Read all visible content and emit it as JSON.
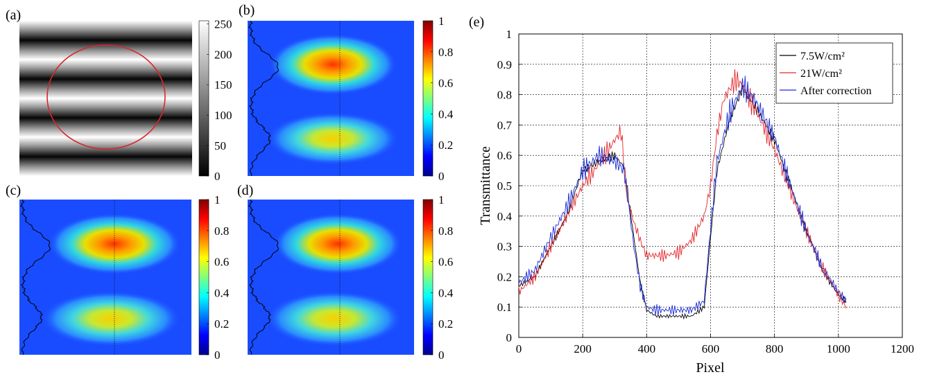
{
  "panels": [
    {
      "id": "a",
      "label": "(a)"
    },
    {
      "id": "b",
      "label": "(b)"
    },
    {
      "id": "c",
      "label": "(c)"
    },
    {
      "id": "d",
      "label": "(d)"
    },
    {
      "id": "e",
      "label": "(e)"
    }
  ],
  "colorbars": {
    "gray": {
      "ticks": [
        "0",
        "50",
        "100",
        "150",
        "200",
        "250"
      ],
      "values": [
        0,
        50,
        100,
        150,
        200,
        250
      ],
      "range": [
        0,
        255
      ]
    },
    "jet": {
      "ticks": [
        "0",
        "0.2",
        "0.4",
        "0.6",
        "0.8",
        "1"
      ],
      "values": [
        0,
        0.2,
        0.4,
        0.6,
        0.8,
        1
      ],
      "range": [
        0,
        1
      ]
    }
  },
  "colors": {
    "ring": "#d9262c",
    "series_black": "#000000",
    "series_red": "#e3262a",
    "series_blue": "#1a2bd6",
    "grid": "#000000"
  },
  "chart_data": {
    "type": "line",
    "xlabel": "Pixel",
    "ylabel": "Transmittance",
    "xlim": [
      0,
      1200
    ],
    "ylim": [
      0,
      1
    ],
    "xticks": [
      0,
      200,
      400,
      600,
      800,
      1000,
      1200
    ],
    "yticks": [
      0,
      0.1,
      0.2,
      0.3,
      0.4,
      0.5,
      0.6,
      0.7,
      0.8,
      0.9,
      1
    ],
    "grid": true,
    "legend_position": "top-right",
    "series": [
      {
        "name": "7.5W/cm²",
        "color": "#000000",
        "x": [
          0,
          50,
          100,
          150,
          200,
          250,
          300,
          330,
          360,
          380,
          400,
          430,
          460,
          500,
          540,
          580,
          600,
          620,
          660,
          700,
          740,
          800,
          850,
          900,
          950,
          1000,
          1024
        ],
        "y": [
          0.17,
          0.2,
          0.3,
          0.4,
          0.55,
          0.58,
          0.6,
          0.56,
          0.33,
          0.18,
          0.09,
          0.07,
          0.07,
          0.07,
          0.07,
          0.1,
          0.33,
          0.55,
          0.72,
          0.82,
          0.76,
          0.65,
          0.5,
          0.35,
          0.22,
          0.14,
          0.12
        ]
      },
      {
        "name": "21W/cm²",
        "color": "#e3262a",
        "x": [
          0,
          50,
          100,
          150,
          200,
          250,
          300,
          320,
          340,
          360,
          380,
          400,
          430,
          460,
          500,
          540,
          580,
          600,
          620,
          640,
          660,
          680,
          700,
          740,
          800,
          850,
          900,
          950,
          1000,
          1024
        ],
        "y": [
          0.15,
          0.2,
          0.3,
          0.4,
          0.5,
          0.57,
          0.65,
          0.68,
          0.45,
          0.38,
          0.32,
          0.27,
          0.27,
          0.27,
          0.28,
          0.32,
          0.4,
          0.5,
          0.67,
          0.78,
          0.82,
          0.85,
          0.83,
          0.75,
          0.62,
          0.48,
          0.35,
          0.23,
          0.14,
          0.1
        ]
      },
      {
        "name": "After correction",
        "color": "#1a2bd6",
        "x": [
          0,
          50,
          100,
          150,
          200,
          250,
          300,
          330,
          360,
          380,
          400,
          430,
          460,
          500,
          540,
          580,
          600,
          620,
          660,
          700,
          740,
          800,
          850,
          900,
          950,
          1000,
          1024
        ],
        "y": [
          0.18,
          0.22,
          0.33,
          0.43,
          0.55,
          0.6,
          0.58,
          0.55,
          0.3,
          0.17,
          0.1,
          0.09,
          0.09,
          0.09,
          0.09,
          0.12,
          0.36,
          0.58,
          0.74,
          0.83,
          0.78,
          0.66,
          0.5,
          0.35,
          0.23,
          0.15,
          0.12
        ]
      }
    ]
  }
}
